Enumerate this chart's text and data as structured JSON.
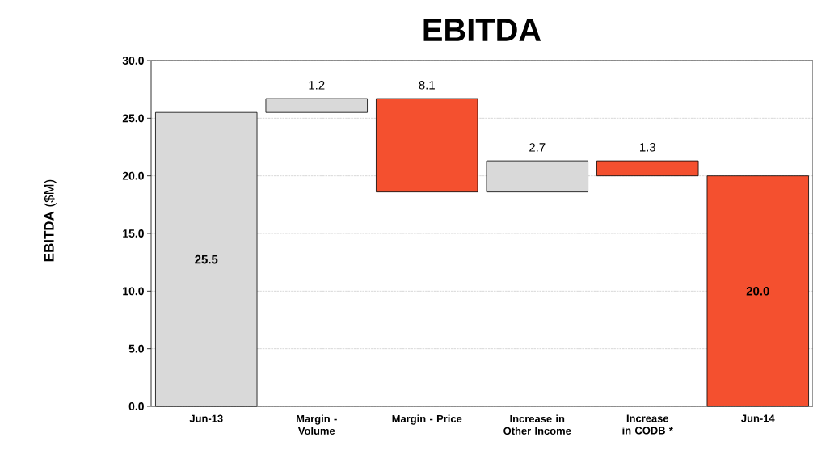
{
  "chart_data": {
    "type": "bar",
    "title": "EBITDA",
    "ylabel": "**EBITDA** ($M)",
    "categories": [
      "Jun-13",
      "Margin - Volume",
      "Margin - Price",
      "Increase in Other Income",
      "Increase in CODB *",
      "Jun-14"
    ],
    "values": [
      25.5,
      1.2,
      8.1,
      2.7,
      1.3,
      20.0
    ],
    "base": [
      0,
      25.5,
      18.6,
      18.6,
      20.0,
      0
    ],
    "colors": [
      "#d9d9d9",
      "#d9d9d9",
      "#f4502f",
      "#d9d9d9",
      "#f4502f",
      "#f4502f"
    ],
    "value_labels": [
      "25.5",
      "1.2",
      "8.1",
      "2.7",
      "1.3",
      "20.0"
    ],
    "ylim": [
      0,
      30
    ],
    "yticks": [
      {
        "value": 0,
        "label": "0.0"
      },
      {
        "value": 5,
        "label": "5.0"
      },
      {
        "value": 10,
        "label": "10.0"
      },
      {
        "value": 15,
        "label": "15.0"
      },
      {
        "value": 20,
        "label": "20.0"
      },
      {
        "value": 25,
        "label": "25.0"
      },
      {
        "value": 30,
        "label": "30.0"
      }
    ],
    "grid": "y"
  }
}
